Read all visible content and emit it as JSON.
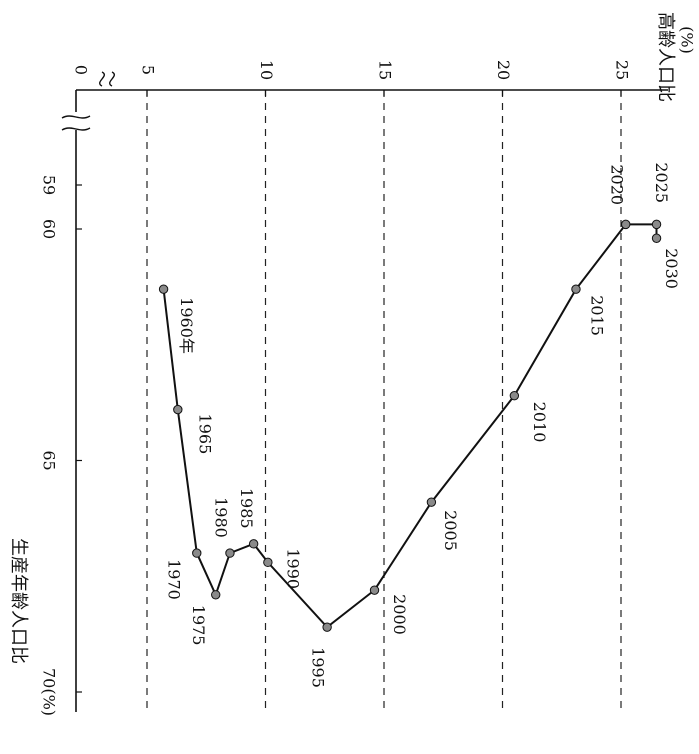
{
  "chart_data": {
    "type": "line",
    "orientation": "rotated-90-clockwise",
    "x_axis": {
      "label": "生産年齢人口比",
      "unit": "(%)",
      "range": [
        58.7,
        70
      ],
      "ticks": [
        59,
        60,
        65,
        70
      ],
      "broken": true
    },
    "y_axis": {
      "label": "高齢人口比",
      "unit": "(%)",
      "range": [
        0,
        28
      ],
      "ticks": [
        0,
        5,
        10,
        15,
        20,
        25
      ],
      "broken": true
    },
    "grid": "dashed, at y ticks",
    "series": [
      {
        "points": [
          {
            "label": "1960年",
            "x": 61.3,
            "y": 5.7
          },
          {
            "label": "1965",
            "x": 63.9,
            "y": 6.3
          },
          {
            "label": "1970",
            "x": 67.0,
            "y": 7.1
          },
          {
            "label": "1975",
            "x": 67.9,
            "y": 7.9
          },
          {
            "label": "1980",
            "x": 67.0,
            "y": 8.5
          },
          {
            "label": "1985",
            "x": 66.8,
            "y": 9.5
          },
          {
            "label": "1990",
            "x": 67.2,
            "y": 10.1
          },
          {
            "label": "1995",
            "x": 68.6,
            "y": 12.6
          },
          {
            "label": "2000",
            "x": 67.8,
            "y": 14.6
          },
          {
            "label": "2005",
            "x": 65.9,
            "y": 17.0
          },
          {
            "label": "2010",
            "x": 63.6,
            "y": 20.5
          },
          {
            "label": "2015",
            "x": 61.3,
            "y": 23.1
          },
          {
            "label": "2020",
            "x": 59.9,
            "y": 25.2
          },
          {
            "label": "2025",
            "x": 59.9,
            "y": 26.5
          },
          {
            "label": "2030",
            "x": 60.2,
            "y": 26.5
          }
        ]
      }
    ]
  }
}
